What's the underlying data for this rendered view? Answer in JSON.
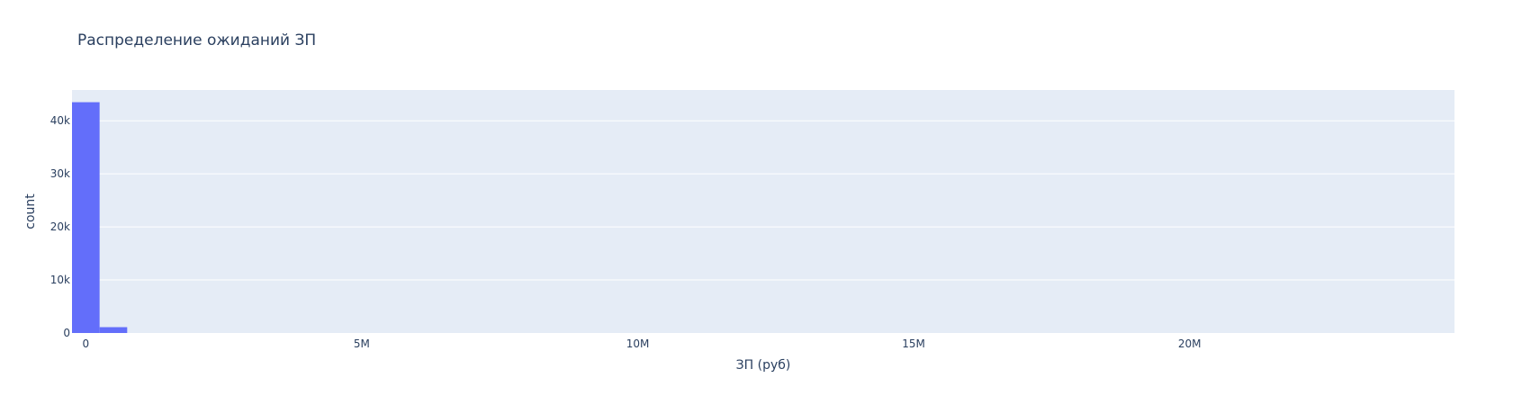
{
  "chart_data": {
    "type": "bar",
    "title": "Распределение ожиданий ЗП",
    "xlabel": "ЗП (руб)",
    "ylabel": "count",
    "xlim": [
      -250000,
      24800000
    ],
    "ylim": [
      0,
      45800
    ],
    "x_ticks": [
      {
        "value": 0,
        "label": "0"
      },
      {
        "value": 5000000,
        "label": "5M"
      },
      {
        "value": 10000000,
        "label": "10M"
      },
      {
        "value": 15000000,
        "label": "15M"
      },
      {
        "value": 20000000,
        "label": "20M"
      }
    ],
    "y_ticks": [
      {
        "value": 0,
        "label": "0"
      },
      {
        "value": 10000,
        "label": "10k"
      },
      {
        "value": 20000,
        "label": "20k"
      },
      {
        "value": 30000,
        "label": "30k"
      },
      {
        "value": 40000,
        "label": "40k"
      }
    ],
    "bins": [
      {
        "x0": -250000,
        "x1": 250000,
        "count": 43500
      },
      {
        "x0": 250000,
        "x1": 750000,
        "count": 1100
      }
    ],
    "grid": true,
    "colors": {
      "bar": "#636efa",
      "plot_bg": "#e5ecf6",
      "grid": "#ffffff",
      "text": "#2a3f5f"
    }
  }
}
